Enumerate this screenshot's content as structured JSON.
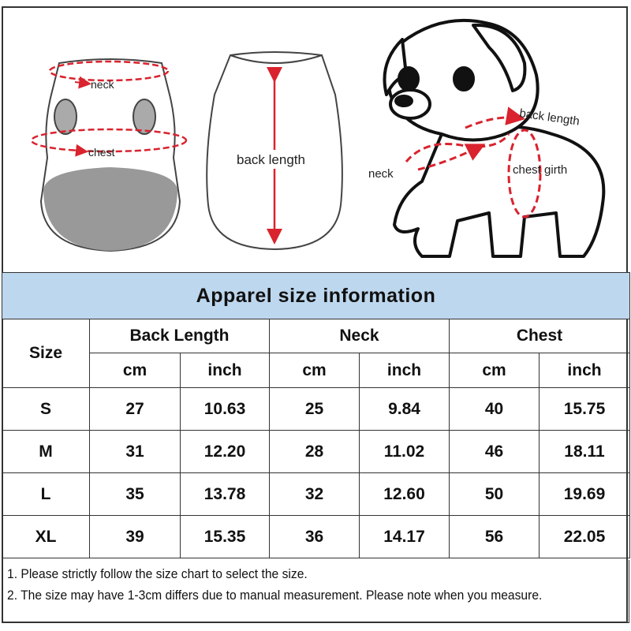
{
  "illustrations": {
    "front_labels": {
      "neck": "neck",
      "chest": "chest"
    },
    "back_labels": {
      "back_length": "back length"
    },
    "dog_labels": {
      "back_length": "back length",
      "neck": "neck",
      "chest_girth": "chest girth"
    },
    "arrow_color": "#d9232e"
  },
  "table": {
    "title": "Apparel size information",
    "header": {
      "size": "Size",
      "groups": [
        "Back Length",
        "Neck",
        "Chest"
      ],
      "units": [
        "cm",
        "inch",
        "cm",
        "inch",
        "cm",
        "inch"
      ]
    },
    "rows": [
      {
        "size": "S",
        "values": [
          "27",
          "10.63",
          "25",
          "9.84",
          "40",
          "15.75"
        ]
      },
      {
        "size": "M",
        "values": [
          "31",
          "12.20",
          "28",
          "11.02",
          "46",
          "18.11"
        ]
      },
      {
        "size": "L",
        "values": [
          "35",
          "13.78",
          "32",
          "12.60",
          "50",
          "19.69"
        ]
      },
      {
        "size": "XL",
        "values": [
          "39",
          "15.35",
          "36",
          "14.17",
          "56",
          "22.05"
        ]
      }
    ],
    "header_color": "#bdd7ee"
  },
  "notes": [
    "1. Please strictly follow the size chart  to select the size.",
    "2. The size may have 1-3cm differs due to manual measurement. Please note when you measure."
  ]
}
